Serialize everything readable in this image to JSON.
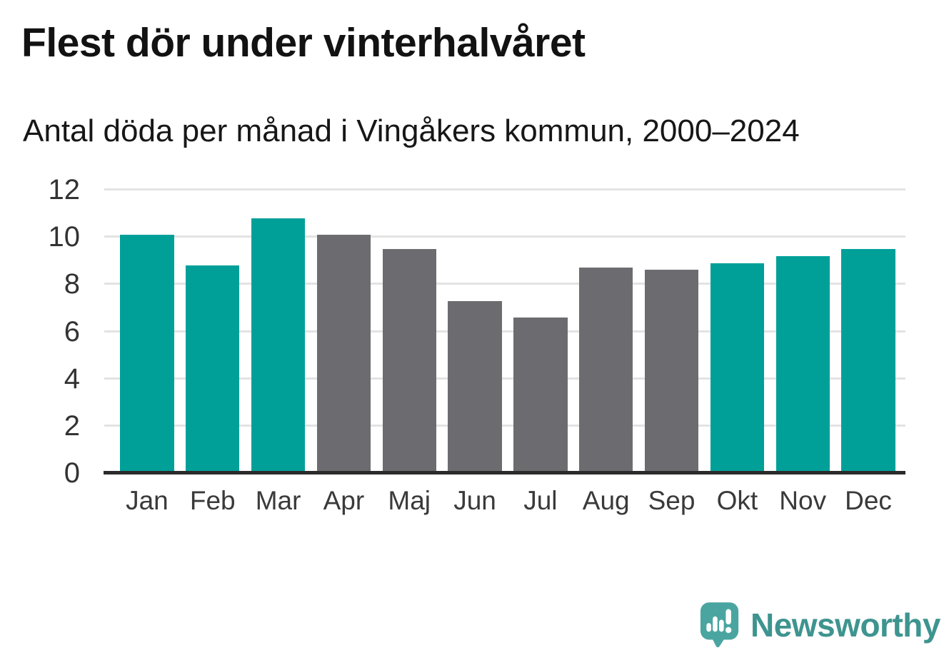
{
  "header": {
    "title": "Flest dör under vinterhalvåret",
    "subtitle": "Antal döda per månad i Vingåkers kommun, 2000–2024"
  },
  "chart_data": {
    "type": "bar",
    "title": "Flest dör under vinterhalvåret",
    "subtitle": "Antal döda per månad i Vingåkers kommun, 2000–2024",
    "categories": [
      "Jan",
      "Feb",
      "Mar",
      "Apr",
      "Maj",
      "Jun",
      "Jul",
      "Aug",
      "Sep",
      "Okt",
      "Nov",
      "Dec"
    ],
    "values": [
      10.1,
      8.8,
      10.8,
      10.1,
      9.5,
      7.3,
      6.6,
      8.7,
      8.6,
      8.9,
      9.2,
      9.5
    ],
    "highlighted": [
      true,
      true,
      true,
      false,
      false,
      false,
      false,
      false,
      false,
      true,
      true,
      true
    ],
    "highlight_color": "#00a099",
    "base_color": "#6c6c70",
    "gridline_color": "#e3e3e3",
    "axis_line_color": "#2b2b2b",
    "xlabel": "",
    "ylabel": "",
    "ylim": [
      0,
      12
    ],
    "yticks": [
      0,
      2,
      4,
      6,
      8,
      10,
      12
    ],
    "grid": "horizontal",
    "legend": "none"
  },
  "branding": {
    "logo_text": "Newsworthy",
    "logo_text_color": "#3e948f",
    "icon_color": "#4aa5a0",
    "icon_name": "newsworthy-speech-bubble-chart-icon"
  }
}
